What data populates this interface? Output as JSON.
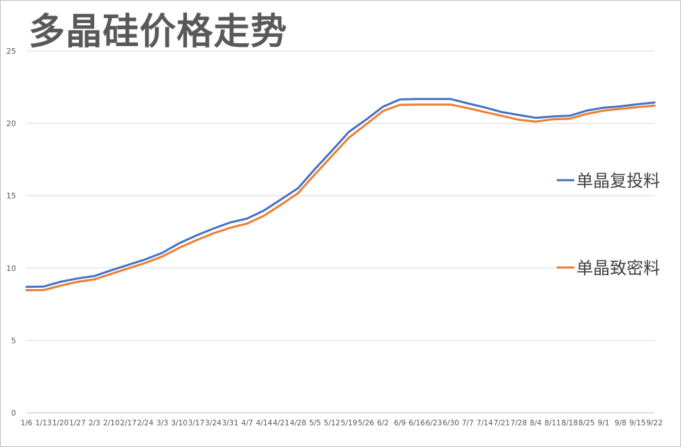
{
  "chart_data": {
    "type": "line",
    "title": "多晶硅价格走势",
    "xlabel": "",
    "ylabel": "",
    "ylim": [
      0,
      25
    ],
    "yticks": [
      0,
      5,
      10,
      15,
      20,
      25
    ],
    "grid": true,
    "legend_position": "right",
    "categories": [
      "1/6",
      "1/13",
      "1/20",
      "1/27",
      "2/3",
      "2/10",
      "2/17",
      "2/24",
      "3/3",
      "3/10",
      "3/17",
      "3/24",
      "3/31",
      "4/7",
      "4/14",
      "4/21",
      "4/28",
      "5/5",
      "5/12",
      "5/19",
      "5/26",
      "6/2",
      "6/9",
      "6/16",
      "6/23",
      "6/30",
      "7/7",
      "7/14",
      "7/21",
      "7/28",
      "8/4",
      "8/11",
      "8/18",
      "8/25",
      "9/1",
      "9/8",
      "9/15",
      "9/22"
    ],
    "series": [
      {
        "name": "单晶复投料",
        "color": "#4472C4",
        "values": [
          8.7,
          8.72,
          9.05,
          9.28,
          9.45,
          9.85,
          10.22,
          10.6,
          11.05,
          11.72,
          12.25,
          12.72,
          13.15,
          13.42,
          13.98,
          14.75,
          15.52,
          16.85,
          18.12,
          19.42,
          20.25,
          21.15,
          21.65,
          21.68,
          21.68,
          21.68,
          21.38,
          21.1,
          20.78,
          20.58,
          20.38,
          20.48,
          20.52,
          20.88,
          21.08,
          21.18,
          21.32,
          21.44
        ]
      },
      {
        "name": "单晶致密料",
        "color": "#ED7D31",
        "values": [
          8.47,
          8.48,
          8.78,
          9.05,
          9.22,
          9.6,
          9.98,
          10.35,
          10.8,
          11.4,
          11.92,
          12.4,
          12.78,
          13.08,
          13.62,
          14.38,
          15.18,
          16.48,
          17.75,
          19.02,
          19.92,
          20.85,
          21.28,
          21.3,
          21.3,
          21.3,
          21.05,
          20.78,
          20.52,
          20.25,
          20.12,
          20.28,
          20.32,
          20.65,
          20.88,
          21.0,
          21.12,
          21.22
        ]
      }
    ]
  }
}
